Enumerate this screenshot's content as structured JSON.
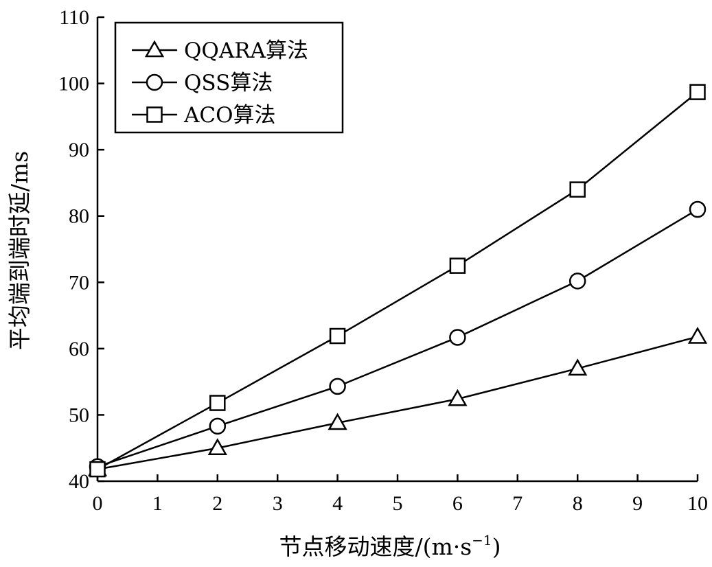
{
  "chart_data": {
    "type": "line",
    "xlabel": "节点移动速度/(m·s",
    "xlabel_sup": "−1",
    "xlabel_end": ")",
    "ylabel": "平均端到端时延/ms",
    "xlim": [
      0,
      10
    ],
    "ylim": [
      40,
      110
    ],
    "xticks": [
      0,
      1,
      2,
      3,
      4,
      5,
      6,
      7,
      8,
      9,
      10
    ],
    "yticks": [
      40,
      50,
      60,
      70,
      80,
      90,
      100,
      110
    ],
    "legend_position": "top-left",
    "grid": false,
    "x": [
      0,
      2,
      4,
      6,
      8,
      10
    ],
    "series": [
      {
        "name": "QQARA算法",
        "marker": "triangle",
        "values": [
          41.8,
          45.0,
          48.8,
          52.4,
          57.0,
          61.8
        ]
      },
      {
        "name": "QSS算法",
        "marker": "circle",
        "values": [
          42.2,
          48.3,
          54.3,
          61.7,
          70.2,
          81.0
        ]
      },
      {
        "name": "ACO算法",
        "marker": "square",
        "values": [
          41.8,
          51.8,
          61.9,
          72.5,
          84.0,
          98.7
        ]
      }
    ]
  }
}
